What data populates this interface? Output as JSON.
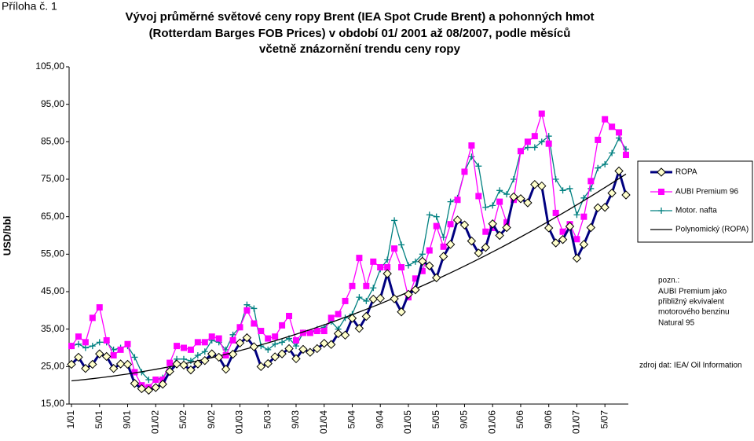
{
  "page_label": "Příloha č. 1",
  "chart_data": {
    "type": "line",
    "title": [
      "Vývoj průměrné světové ceny ropy Brent (IEA Spot Crude Brent) a pohonných hmot",
      "(Rotterdam Barges FOB Prices) v období 01/ 2001 až 08/2007, podle měsíců",
      "včetně znázornění trendu ceny ropy"
    ],
    "ylabel": "USD/bbl",
    "categories": [
      "1/01",
      null,
      null,
      null,
      "5/01",
      null,
      null,
      null,
      "9/01",
      null,
      null,
      null,
      "01/02",
      null,
      null,
      null,
      "5/02",
      null,
      null,
      null,
      "9/02",
      null,
      null,
      null,
      "01/03",
      null,
      null,
      null,
      "5/03",
      null,
      null,
      null,
      "9/03",
      null,
      null,
      null,
      "01/04",
      null,
      null,
      null,
      "5/04",
      null,
      null,
      null,
      "9/04",
      null,
      null,
      null,
      "01/05",
      null,
      null,
      null,
      "5/05",
      null,
      null,
      null,
      "9/05",
      null,
      null,
      null,
      "01/06",
      null,
      null,
      null,
      "5/06",
      null,
      null,
      null,
      "9/06",
      null,
      null,
      null,
      "01/07",
      null,
      null,
      null,
      "5/07",
      null,
      null,
      null
    ],
    "ylim": [
      15,
      105
    ],
    "yticks": [
      {
        "value": 15,
        "label": "15,00"
      },
      {
        "value": 25,
        "label": "25,00"
      },
      {
        "value": 35,
        "label": "35,00"
      },
      {
        "value": 45,
        "label": "45,00"
      },
      {
        "value": 55,
        "label": "55,00"
      },
      {
        "value": 65,
        "label": "65,00"
      },
      {
        "value": 75,
        "label": "75,00"
      },
      {
        "value": 85,
        "label": "85,00"
      },
      {
        "value": 95,
        "label": "95,00"
      },
      {
        "value": 105,
        "label": "105,00"
      }
    ],
    "series": [
      {
        "name": "ROPA",
        "color": "#000080",
        "marker": "diamond",
        "values": [
          25.6,
          27.5,
          24.5,
          25.6,
          28.4,
          27.7,
          24.5,
          25.7,
          25.6,
          20.5,
          19.1,
          18.7,
          19.4,
          20.3,
          23.7,
          25.7,
          25.4,
          24.1,
          25.7,
          26.6,
          28.4,
          27.5,
          24.3,
          28.3,
          31.3,
          32.7,
          30.3,
          25.0,
          25.8,
          27.6,
          28.4,
          29.8,
          27.1,
          29.6,
          28.8,
          29.8,
          31.2,
          30.9,
          33.8,
          33.4,
          37.9,
          35.2,
          38.4,
          43.0,
          43.2,
          49.8,
          43.1,
          39.6,
          44.3,
          45.5,
          53.1,
          51.9,
          48.7,
          54.4,
          57.6,
          64.1,
          62.8,
          58.5,
          55.3,
          56.8,
          63.1,
          60.0,
          62.1,
          70.3,
          69.8,
          68.7,
          73.6,
          73.2,
          62.0,
          58.0,
          58.9,
          62.4,
          53.9,
          57.6,
          62.1,
          67.4,
          67.5,
          71.3,
          77.2,
          70.8
        ]
      },
      {
        "name": "AUBI Premium 96",
        "color": "#ff00ff",
        "marker": "square",
        "values": [
          30.5,
          33,
          31.5,
          38,
          40.8,
          32,
          28,
          29.5,
          31,
          23.5,
          20,
          19.5,
          21.5,
          21.5,
          26,
          30.5,
          30,
          29.5,
          31.5,
          31.5,
          33,
          32.5,
          28,
          32,
          35.5,
          40,
          36.5,
          34.5,
          32.5,
          33,
          36,
          38.5,
          32,
          34,
          34,
          34.5,
          34.5,
          38,
          39,
          42.5,
          46.5,
          54,
          46.5,
          53,
          51.5,
          51.5,
          56.5,
          51.5,
          43.5,
          48.5,
          50.5,
          56,
          62.5,
          57,
          63,
          69.5,
          77,
          84,
          70.5,
          61,
          62,
          69,
          63.5,
          69.5,
          82.5,
          85,
          86.5,
          92.5,
          84.5,
          66,
          61,
          63,
          59,
          65,
          74.5,
          85.5,
          91,
          89,
          87.5,
          81.5
        ]
      },
      {
        "name": "Motor. nafta",
        "color": "#008080",
        "marker": "plus",
        "values": [
          30.5,
          31,
          30,
          30.5,
          31.5,
          31.5,
          29.5,
          30,
          30.5,
          27.5,
          23.5,
          21.5,
          21.5,
          22,
          24.5,
          27,
          27,
          26.5,
          28,
          29,
          32,
          31.5,
          29.5,
          33.5,
          35.5,
          41.5,
          40.5,
          30.5,
          29.5,
          31,
          31.5,
          32.5,
          30.5,
          34,
          34,
          35,
          35.5,
          37,
          35,
          38,
          39,
          43.5,
          42.5,
          46,
          51,
          53.5,
          64,
          57.5,
          52,
          53,
          55,
          65.5,
          65,
          59.5,
          69,
          70,
          77,
          81,
          78.5,
          67.5,
          68,
          72,
          71,
          75,
          82.5,
          83.5,
          83.5,
          85,
          86.5,
          75,
          72,
          72.5,
          65.5,
          70,
          72.5,
          78,
          79,
          82,
          86,
          83
        ]
      }
    ],
    "trendline": {
      "name": "Polynomický (ROPA)",
      "color": "#000000",
      "of_series": 0
    },
    "note": [
      "pozn.:",
      "AUBI Premium jako",
      "přibližný ekvivalent",
      "motorového benzinu",
      "Natural 95"
    ],
    "source": "zdroj dat: IEA/ Oil Information"
  }
}
